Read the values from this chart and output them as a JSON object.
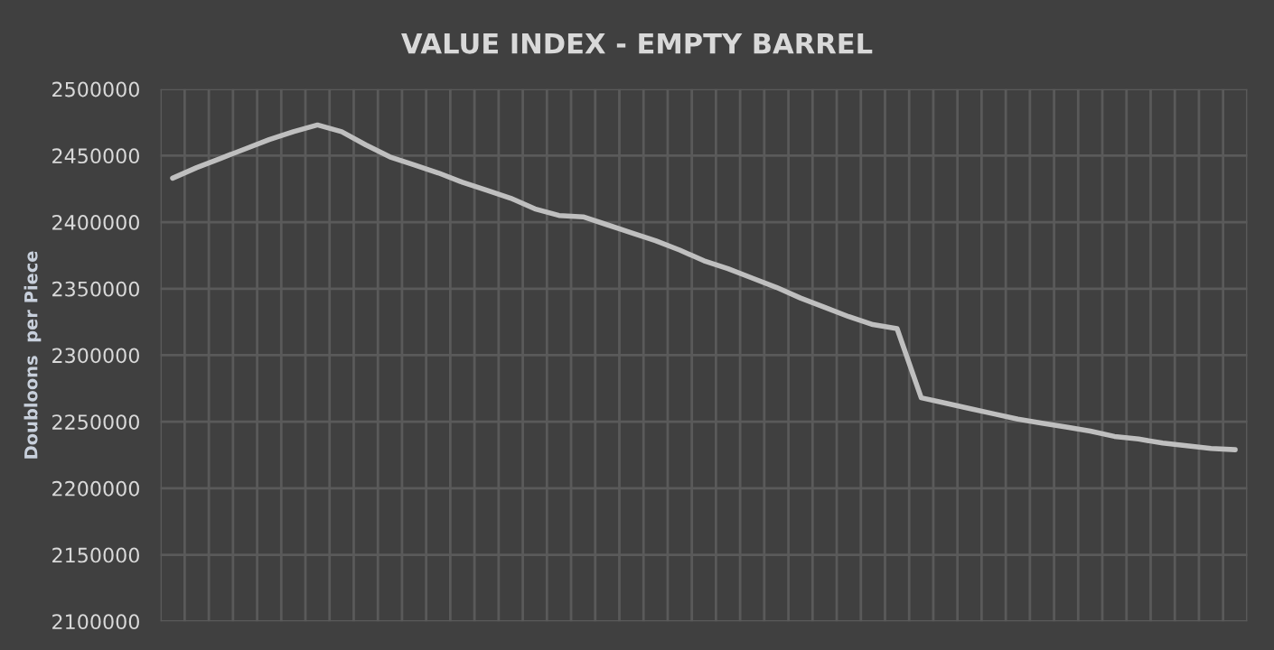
{
  "chart_data": {
    "type": "line",
    "title": "VALUE INDEX - EMPTY BARREL",
    "ylabel": "Doubloons  per Piece",
    "categories": [
      null,
      null,
      null,
      null,
      null,
      null,
      null,
      null,
      null,
      null,
      null,
      null,
      null,
      null,
      null,
      null,
      null,
      null,
      null,
      null,
      null,
      null,
      null,
      null,
      null,
      null,
      null,
      null,
      null,
      null,
      null,
      null,
      null,
      null,
      null,
      null,
      null,
      null,
      null,
      null,
      null,
      null,
      null,
      null,
      null
    ],
    "series": [
      {
        "color": "#bfbfbf",
        "values": [
          2433000,
          2441000,
          2448000,
          2455000,
          2462000,
          2468000,
          2473000,
          2468000,
          2458000,
          2449000,
          2443000,
          2437000,
          2430000,
          2424000,
          2418000,
          2410000,
          2405000,
          2404000,
          2398000,
          2392000,
          2386000,
          2379000,
          2371000,
          2365000,
          2358000,
          2351000,
          2343000,
          2336000,
          2329000,
          2323000,
          2320000,
          2268000,
          2264000,
          2260000,
          2256000,
          2252000,
          2249000,
          2246000,
          2243000,
          2239000,
          2237000,
          2234000,
          2232000,
          2230000,
          2229000
        ]
      }
    ],
    "ylim": [
      2100000,
      2500000
    ],
    "yticks": [
      2100000,
      2150000,
      2200000,
      2250000,
      2300000,
      2350000,
      2400000,
      2450000,
      2500000
    ],
    "grid": true,
    "tick_labels": "y",
    "legend": false
  }
}
